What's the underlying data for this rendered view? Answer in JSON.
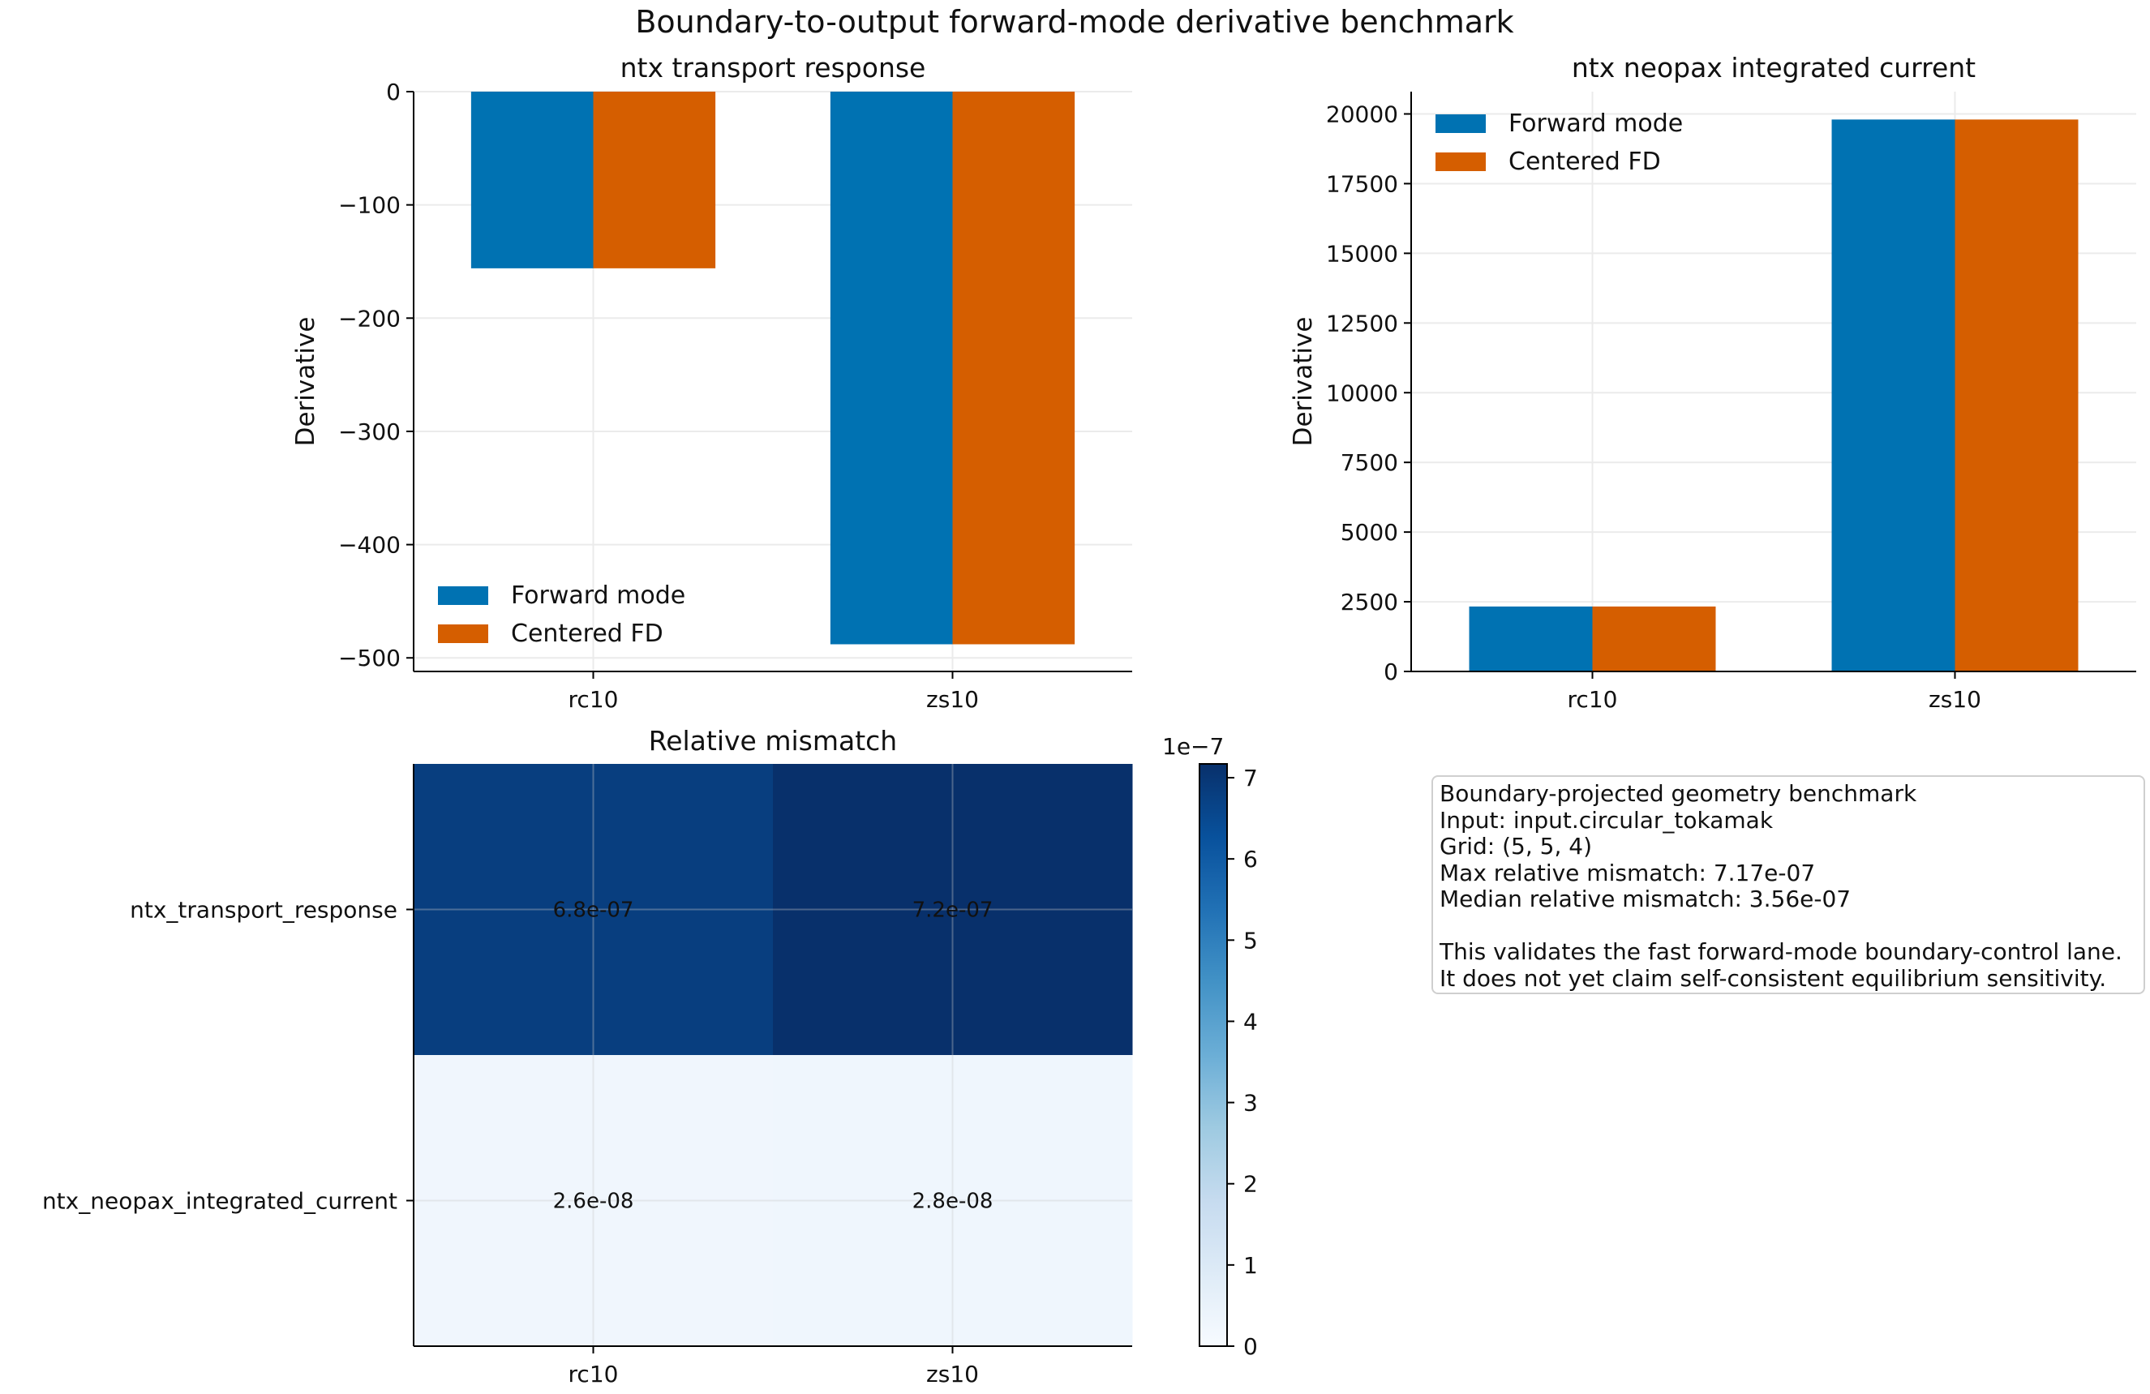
{
  "suptitle": "Boundary-to-output forward-mode derivative benchmark",
  "colors": {
    "forward": "#0072B2",
    "fd": "#D55E00",
    "grid": "#ebebeb",
    "axis": "#000000"
  },
  "chart_data": [
    {
      "type": "bar",
      "title": "ntx transport response",
      "ylabel": "Derivative",
      "xlabel": "",
      "categories": [
        "rc10",
        "zs10"
      ],
      "series": [
        {
          "name": "Forward mode",
          "values": [
            -156,
            -488
          ]
        },
        {
          "name": "Centered FD",
          "values": [
            -156,
            -488
          ]
        }
      ],
      "ylim": [
        -512,
        0
      ],
      "yticks": [
        0,
        -100,
        -200,
        -300,
        -400,
        -500
      ],
      "ytick_labels": [
        "0",
        "−100",
        "−200",
        "−300",
        "−400",
        "−500"
      ],
      "grid": true,
      "legend": "lower-left"
    },
    {
      "type": "bar",
      "title": "ntx neopax integrated current",
      "ylabel": "Derivative",
      "xlabel": "",
      "categories": [
        "rc10",
        "zs10"
      ],
      "series": [
        {
          "name": "Forward mode",
          "values": [
            2330,
            19800
          ]
        },
        {
          "name": "Centered FD",
          "values": [
            2330,
            19800
          ]
        }
      ],
      "ylim": [
        0,
        20800
      ],
      "yticks": [
        0,
        2500,
        5000,
        7500,
        10000,
        12500,
        15000,
        17500,
        20000
      ],
      "ytick_labels": [
        "0",
        "2500",
        "5000",
        "7500",
        "10000",
        "12500",
        "15000",
        "17500",
        "20000"
      ],
      "grid": true,
      "legend": "upper-left"
    },
    {
      "type": "heatmap",
      "title": "Relative mismatch",
      "x_categories": [
        "rc10",
        "zs10"
      ],
      "y_categories": [
        "ntx_transport_response",
        "ntx_neopax_integrated_current"
      ],
      "values": [
        [
          6.8e-07,
          7.2e-07
        ],
        [
          2.6e-08,
          2.8e-08
        ]
      ],
      "cell_labels": [
        [
          "6.8e-07",
          "7.2e-07"
        ],
        [
          "2.6e-08",
          "2.8e-08"
        ]
      ],
      "colormap": "Blues",
      "colorbar": {
        "range": [
          0,
          7.17e-07
        ],
        "ticks": [
          0,
          1,
          2,
          3,
          4,
          5,
          6,
          7
        ],
        "ytick_labels": [
          "0",
          "1",
          "2",
          "3",
          "4",
          "5",
          "6",
          "7"
        ],
        "offset_label": "1e−7"
      }
    }
  ],
  "info_box": {
    "lines": [
      "Boundary-projected geometry benchmark",
      "Input: input.circular_tokamak",
      "Grid: (5, 5, 4)",
      "Max relative mismatch: 7.17e-07",
      "Median relative mismatch: 3.56e-07"
    ],
    "note_lines": [
      "This validates the fast forward-mode boundary-control lane.",
      "It does not yet claim self-consistent equilibrium sensitivity."
    ]
  }
}
